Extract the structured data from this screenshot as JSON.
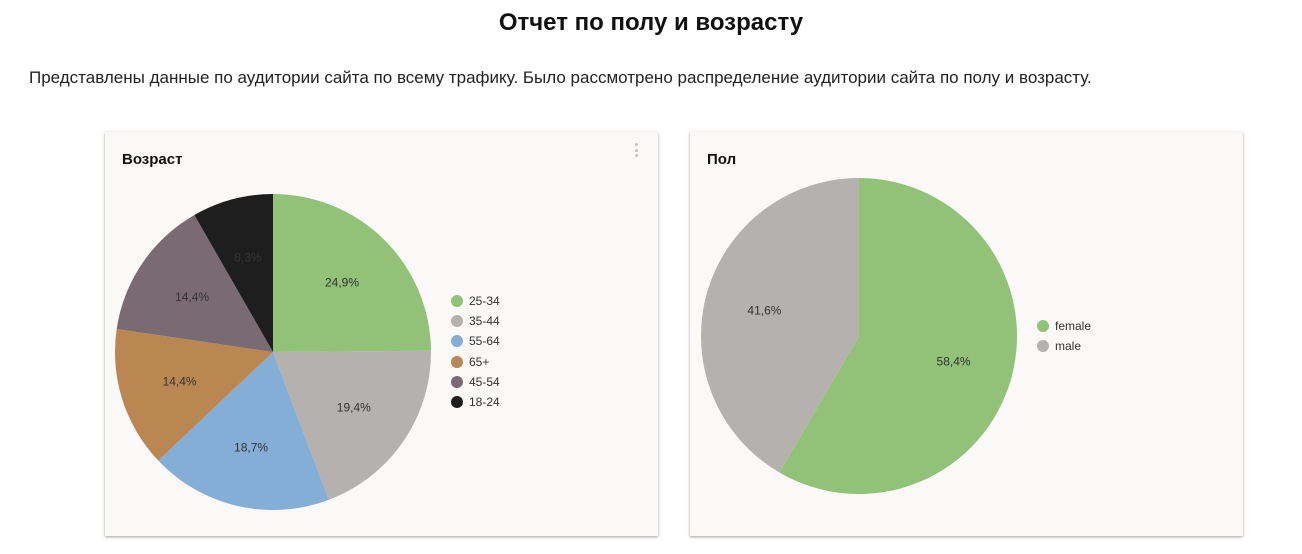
{
  "header": {
    "title": "Отчет по полу и возрасту",
    "intro": "Представлены данные по аудитории сайта по всему трафику. Было рассмотрено распределение аудитории сайта по полу и возрасту."
  },
  "chart_data": [
    {
      "type": "pie",
      "title": "Возраст",
      "categories": [
        "25-34",
        "35-44",
        "55-64",
        "65+",
        "45-54",
        "18-24"
      ],
      "values": [
        24.9,
        19.4,
        18.7,
        14.4,
        14.4,
        8.3
      ],
      "labels": [
        "24,9%",
        "19,4%",
        "18,7%",
        "14,4%",
        "14,4%",
        "8,3%"
      ],
      "colors": [
        "#92c277",
        "#b5b1ae",
        "#84aed5",
        "#ba8752",
        "#7a6a72",
        "#1e1e1e"
      ],
      "label_colors": [
        "#333333",
        "#333333",
        "#333333",
        "#333333",
        "#333333",
        "#8a8a8a"
      ],
      "legend_position": "right"
    },
    {
      "type": "pie",
      "title": "Пол",
      "categories": [
        "female",
        "male"
      ],
      "values": [
        58.4,
        41.6
      ],
      "labels": [
        "58,4%",
        "41,6%"
      ],
      "colors": [
        "#92c277",
        "#b5b1ae"
      ],
      "label_colors": [
        "#333333",
        "#333333"
      ],
      "legend_position": "right"
    }
  ]
}
